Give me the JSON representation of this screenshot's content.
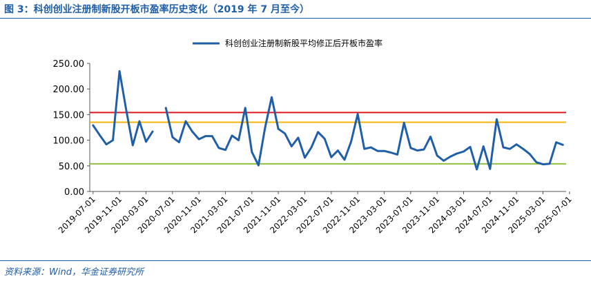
{
  "figure": {
    "title": "图 3：科创创业注册制新股开板市盈率历史变化（2019 年 7 月至今）",
    "source": "资料来源：Wind，华金证券研究所"
  },
  "chart_data": {
    "type": "line",
    "legend": "科创创业注册制新股平均修正后开板市盈率",
    "legend_position": "top-center",
    "ylim": [
      0,
      250
    ],
    "yticks": [
      "0.00",
      "50.00",
      "100.00",
      "150.00",
      "200.00",
      "250.00"
    ],
    "xticks": [
      "2019-07-01",
      "2019-11-01",
      "2020-03-01",
      "2020-07-01",
      "2020-11-01",
      "2021-03-01",
      "2021-07-01",
      "2021-11-01",
      "2022-03-01",
      "2022-07-01",
      "2022-11-01",
      "2023-03-01",
      "2023-07-01",
      "2023-11-01",
      "2024-03-01",
      "2024-07-01",
      "2024-11-01",
      "2025-03-01",
      "2025-07-01"
    ],
    "grid": false,
    "series": [
      {
        "name": "科创创业注册制新股平均修正后开板市盈率",
        "color": "#1f5ea8",
        "segments": [
          [
            {
              "x": "2019-07",
              "y": 129
            },
            {
              "x": "2019-08",
              "y": 110
            },
            {
              "x": "2019-09",
              "y": 92
            },
            {
              "x": "2019-10",
              "y": 100
            },
            {
              "x": "2019-11",
              "y": 235
            },
            {
              "x": "2019-12",
              "y": 160
            },
            {
              "x": "2020-01",
              "y": 90
            },
            {
              "x": "2020-02",
              "y": 137
            },
            {
              "x": "2020-03",
              "y": 97
            },
            {
              "x": "2020-04",
              "y": 117
            }
          ],
          [
            {
              "x": "2020-06",
              "y": 163
            },
            {
              "x": "2020-07",
              "y": 106
            },
            {
              "x": "2020-08",
              "y": 96
            },
            {
              "x": "2020-09",
              "y": 137
            },
            {
              "x": "2020-10",
              "y": 117
            },
            {
              "x": "2020-11",
              "y": 102
            },
            {
              "x": "2020-12",
              "y": 108
            },
            {
              "x": "2021-01",
              "y": 108
            },
            {
              "x": "2021-02",
              "y": 85
            },
            {
              "x": "2021-03",
              "y": 81
            },
            {
              "x": "2021-04",
              "y": 109
            },
            {
              "x": "2021-05",
              "y": 100
            },
            {
              "x": "2021-06",
              "y": 163
            },
            {
              "x": "2021-07",
              "y": 77
            },
            {
              "x": "2021-08",
              "y": 51
            },
            {
              "x": "2021-09",
              "y": 125
            },
            {
              "x": "2021-10",
              "y": 184
            },
            {
              "x": "2021-11",
              "y": 122
            },
            {
              "x": "2021-12",
              "y": 113
            },
            {
              "x": "2022-01",
              "y": 88
            },
            {
              "x": "2022-02",
              "y": 105
            },
            {
              "x": "2022-03",
              "y": 66
            },
            {
              "x": "2022-04",
              "y": 86
            },
            {
              "x": "2022-05",
              "y": 116
            },
            {
              "x": "2022-06",
              "y": 103
            },
            {
              "x": "2022-07",
              "y": 67
            },
            {
              "x": "2022-08",
              "y": 80
            },
            {
              "x": "2022-09",
              "y": 62
            },
            {
              "x": "2022-10",
              "y": 97
            },
            {
              "x": "2022-11",
              "y": 151
            },
            {
              "x": "2022-12",
              "y": 83
            },
            {
              "x": "2023-01",
              "y": 86
            },
            {
              "x": "2023-02",
              "y": 79
            },
            {
              "x": "2023-03",
              "y": 79
            },
            {
              "x": "2023-04",
              "y": 76
            },
            {
              "x": "2023-05",
              "y": 72
            },
            {
              "x": "2023-06",
              "y": 134
            },
            {
              "x": "2023-07",
              "y": 85
            },
            {
              "x": "2023-08",
              "y": 80
            },
            {
              "x": "2023-09",
              "y": 82
            },
            {
              "x": "2023-10",
              "y": 107
            },
            {
              "x": "2023-11",
              "y": 70
            },
            {
              "x": "2023-12",
              "y": 60
            },
            {
              "x": "2024-01",
              "y": 68
            },
            {
              "x": "2024-02",
              "y": 74
            },
            {
              "x": "2024-03",
              "y": 78
            },
            {
              "x": "2024-04",
              "y": 87
            },
            {
              "x": "2024-05",
              "y": 43
            },
            {
              "x": "2024-06",
              "y": 88
            },
            {
              "x": "2024-07",
              "y": 44
            },
            {
              "x": "2024-08",
              "y": 141
            },
            {
              "x": "2024-09",
              "y": 86
            },
            {
              "x": "2024-10",
              "y": 83
            },
            {
              "x": "2024-11",
              "y": 92
            },
            {
              "x": "2024-12",
              "y": 83
            },
            {
              "x": "2025-01",
              "y": 73
            },
            {
              "x": "2025-02",
              "y": 57
            },
            {
              "x": "2025-03",
              "y": 53
            },
            {
              "x": "2025-04",
              "y": 54
            },
            {
              "x": "2025-05",
              "y": 96
            },
            {
              "x": "2025-06",
              "y": 91
            }
          ]
        ]
      }
    ],
    "reference_lines": [
      {
        "y": 154,
        "color": "#e0161c"
      },
      {
        "y": 135,
        "color": "#f2b705"
      },
      {
        "y": 54,
        "color": "#8fbf3f"
      }
    ]
  }
}
